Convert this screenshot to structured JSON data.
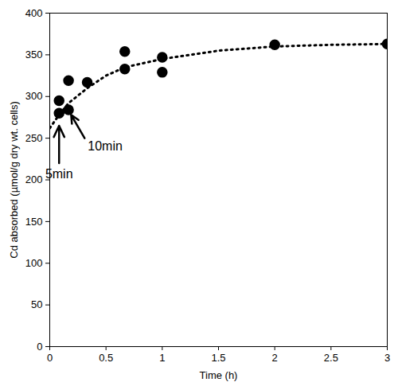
{
  "chart_data": {
    "type": "scatter",
    "x_label": "Time (h)",
    "y_label": "Cd absorbed (µmol/g dry wt. cells)",
    "xlim": [
      0,
      3
    ],
    "xticks": [
      0,
      0.5,
      1,
      1.5,
      2,
      2.5,
      3
    ],
    "ylim": [
      0,
      400
    ],
    "yticks": [
      0,
      50,
      100,
      150,
      200,
      250,
      300,
      350,
      400
    ],
    "grid": false,
    "series": [
      {
        "type": "scatter",
        "marker": "circle",
        "color": "#000000",
        "x": [
          0.083,
          0.083,
          0.167,
          0.167,
          0.333,
          0.667,
          0.667,
          1.0,
          1.0,
          2.0,
          3.0
        ],
        "values": [
          280,
          295,
          284,
          319,
          317,
          354,
          333,
          347,
          329,
          362,
          363
        ]
      },
      {
        "type": "line",
        "line_style": "dotted",
        "color": "#000000",
        "x": [
          0,
          0.083,
          0.167,
          0.333,
          0.5,
          0.667,
          1.0,
          1.5,
          2.0,
          2.5,
          3.0
        ],
        "values": [
          262,
          278,
          292,
          310,
          325,
          335,
          345,
          355,
          360,
          362,
          363
        ]
      }
    ],
    "annotations": [
      {
        "text": "5min",
        "x": 0.083,
        "y": 265
      },
      {
        "text": "10min",
        "x": 0.19,
        "y": 278
      }
    ]
  }
}
